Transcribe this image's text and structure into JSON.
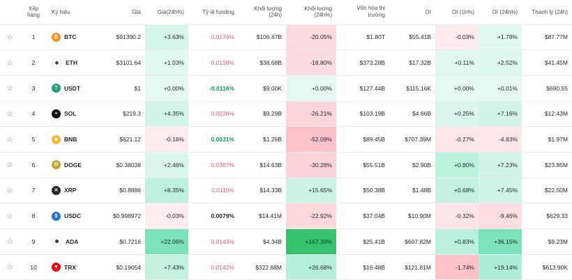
{
  "headers": {
    "rank": "Xếp hạng",
    "symbol": "Ký hiệu",
    "price": "Giá",
    "price_change": "Giá(24h%)",
    "funding": "Tỷ lệ funding",
    "volume": "Khối lượng (24h)",
    "volume_change": "Khối lượng (24h%)",
    "market_cap_line1": "Vốn hóa thị",
    "market_cap_line2": "trường",
    "oi": "OI",
    "oi_1h": "OI (1h%)",
    "oi_24h": "OI (24h%)",
    "liquidation": "Thanh lý (24h)"
  },
  "rows": [
    {
      "rank": "1",
      "symbol": "BTC",
      "icon": "bitcoin-icon",
      "icon_color": "#f7931a",
      "icon_glyph": "₿",
      "price": "$91390.2",
      "price_change": "+3.63%",
      "funding": "0.0174%",
      "volume": "$106.47B",
      "volume_change": "-20.05%",
      "market_cap": "$1.80T",
      "oi": "$55.41B",
      "oi_1h": "-0.03%",
      "oi_24h": "+1.78%",
      "liquidation": "$87.77M"
    },
    {
      "rank": "2",
      "symbol": "ETH",
      "icon": "ethereum-icon",
      "icon_color": "#ffffff",
      "icon_glyph": "◆",
      "price": "$3101.64",
      "price_change": "+1.03%",
      "funding": "0.0158%",
      "volume": "$38.68B",
      "volume_change": "-18.80%",
      "market_cap": "$373.28B",
      "oi": "$17.32B",
      "oi_1h": "+0.11%",
      "oi_24h": "+2.52%",
      "liquidation": "$41.45M"
    },
    {
      "rank": "3",
      "symbol": "USDT",
      "icon": "tether-icon",
      "icon_color": "#26a17b",
      "icon_glyph": "T",
      "price": "$1",
      "price_change": "+0.00%",
      "funding": "-0.0116%",
      "volume": "$9.00K",
      "volume_change": "+0.00%",
      "market_cap": "$127.44B",
      "oi": "$115.16K",
      "oi_1h": "+0.00%",
      "oi_24h": "+0.01%",
      "liquidation": "$690.55"
    },
    {
      "rank": "4",
      "symbol": "SOL",
      "icon": "solana-icon",
      "icon_color": "#111111",
      "icon_glyph": "≡",
      "price": "$219.3",
      "price_change": "+4.35%",
      "funding": "0.0226%",
      "volume": "$9.29B",
      "volume_change": "-26.21%",
      "market_cap": "$103.19B",
      "oi": "$4.66B",
      "oi_1h": "+0.25%",
      "oi_24h": "+7.16%",
      "liquidation": "$12.43M"
    },
    {
      "rank": "5",
      "symbol": "BNB",
      "icon": "bnb-icon",
      "icon_color": "#f3ba2f",
      "icon_glyph": "◈",
      "price": "$621.12",
      "price_change": "-0.16%",
      "funding": "0.0031%",
      "volume": "$1.26B",
      "volume_change": "-52.09%",
      "market_cap": "$89.45B",
      "oi": "$707.39M",
      "oi_1h": "-0.27%",
      "oi_24h": "-4.83%",
      "liquidation": "$1.97M"
    },
    {
      "rank": "6",
      "symbol": "DOGE",
      "icon": "dogecoin-icon",
      "icon_color": "#c2a633",
      "icon_glyph": "Ð",
      "price": "$0.38038",
      "price_change": "+2.46%",
      "funding": "0.0367%",
      "volume": "$14.63B",
      "volume_change": "-30.28%",
      "market_cap": "$55.51B",
      "oi": "$2.90B",
      "oi_1h": "+0.80%",
      "oi_24h": "+7.23%",
      "liquidation": "$23.85M"
    },
    {
      "rank": "7",
      "symbol": "XRP",
      "icon": "xrp-icon",
      "icon_color": "#23292f",
      "icon_glyph": "✕",
      "price": "$0.8886",
      "price_change": "+8.35%",
      "funding": "0.0110%",
      "volume": "$14.33B",
      "volume_change": "+15.65%",
      "market_cap": "$50.38B",
      "oi": "$1.48B",
      "oi_1h": "+0.68%",
      "oi_24h": "+7.45%",
      "liquidation": "$22.50M"
    },
    {
      "rank": "8",
      "symbol": "USDC",
      "icon": "usdc-icon",
      "icon_color": "#2775ca",
      "icon_glyph": "$",
      "price": "$0.998972",
      "price_change": "-0.03%",
      "funding": "0.0079%",
      "volume": "$14.41M",
      "volume_change": "-22.92%",
      "market_cap": "$37.04B",
      "oi": "$10.90M",
      "oi_1h": "-0.32%",
      "oi_24h": "-9.46%",
      "liquidation": "$629.33"
    },
    {
      "rank": "9",
      "symbol": "ADA",
      "icon": "cardano-icon",
      "icon_color": "#ffffff",
      "icon_glyph": "✺",
      "price": "$0.7216",
      "price_change": "+22.06%",
      "funding": "0.0143%",
      "volume": "$4.34B",
      "volume_change": "+167.30%",
      "market_cap": "$25.41B",
      "oi": "$607.82M",
      "oi_1h": "+0.83%",
      "oi_24h": "+36.15%",
      "liquidation": "$9.23M"
    },
    {
      "rank": "10",
      "symbol": "TRX",
      "icon": "tron-icon",
      "icon_color": "#e50914",
      "icon_glyph": "▼",
      "price": "$0.19054",
      "price_change": "+7.43%",
      "funding": "0.0142%",
      "volume": "$322.68M",
      "volume_change": "+26.68%",
      "market_cap": "$16.48B",
      "oi": "$121.81M",
      "oi_1h": "-1.74%",
      "oi_24h": "+19.14%",
      "liquidation": "$613.90K"
    }
  ]
}
